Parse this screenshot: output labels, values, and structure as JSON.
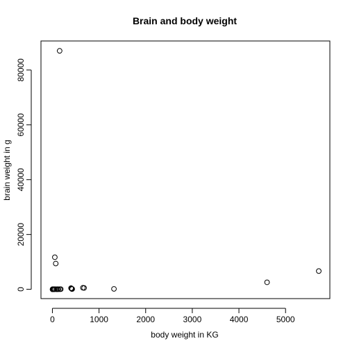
{
  "chart_data": {
    "type": "scatter",
    "title": "Brain and body weight",
    "xlabel": "body weight in KG",
    "ylabel": "brain weight in g",
    "xlim": [
      -245,
      5950
    ],
    "ylim": [
      -3400,
      90600
    ],
    "xticks": [
      0,
      1000,
      2000,
      3000,
      4000,
      5000
    ],
    "yticks": [
      0,
      20000,
      40000,
      60000,
      80000
    ],
    "tick_labels_x": [
      "0",
      "1000",
      "2000",
      "3000",
      "4000",
      "5000"
    ],
    "tick_labels_y": [
      "0",
      "20000",
      "40000",
      "60000",
      "80000"
    ],
    "grid": false,
    "points": [
      {
        "x": 155,
        "y": 87000
      },
      {
        "x": 52,
        "y": 11700
      },
      {
        "x": 72,
        "y": 9400
      },
      {
        "x": 4603,
        "y": 2547
      },
      {
        "x": 5712,
        "y": 6654
      },
      {
        "x": 1320,
        "y": 154
      },
      {
        "x": 655,
        "y": 560
      },
      {
        "x": 680,
        "y": 490
      },
      {
        "x": 410,
        "y": 250
      },
      {
        "x": 420,
        "y": 100
      },
      {
        "x": 400,
        "y": 420
      },
      {
        "x": 425,
        "y": 120
      },
      {
        "x": 180,
        "y": 60
      },
      {
        "x": 160,
        "y": 40
      },
      {
        "x": 130,
        "y": 20
      },
      {
        "x": 110,
        "y": 30
      },
      {
        "x": 90,
        "y": 10
      },
      {
        "x": 60,
        "y": 40
      },
      {
        "x": 40,
        "y": 20
      },
      {
        "x": 30,
        "y": 10
      },
      {
        "x": 20,
        "y": 5
      },
      {
        "x": 10,
        "y": 3
      },
      {
        "x": 5,
        "y": 2
      },
      {
        "x": 2,
        "y": 1
      }
    ]
  }
}
